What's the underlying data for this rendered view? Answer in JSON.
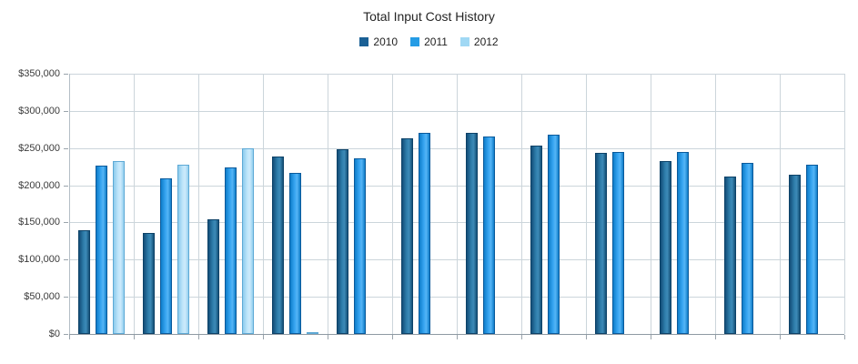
{
  "chart_data": {
    "type": "bar",
    "title": "Total Input Cost History",
    "categories": [
      "",
      "",
      "",
      "",
      "",
      "",
      "",
      "",
      "",
      "",
      "",
      ""
    ],
    "series": [
      {
        "name": "2010",
        "values": [
          140000,
          136000,
          154000,
          239000,
          248000,
          263000,
          271000,
          253000,
          243000,
          233000,
          212000,
          214000
        ],
        "color": {
          "border": "#0d4268",
          "left": "#134e78",
          "mid": "#2f7eac",
          "bright": "#3d8ab7",
          "right": "#155178",
          "legend": "#1a6095"
        }
      },
      {
        "name": "2011",
        "values": [
          226000,
          209000,
          224000,
          217000,
          236000,
          270000,
          265000,
          268000,
          245000,
          245000,
          230000,
          228000
        ],
        "color": {
          "border": "#0a5a9b",
          "left": "#0e7dca",
          "mid": "#38a6f1",
          "bright": "#55b5f6",
          "right": "#0f7dc9",
          "legend": "#259ce5"
        }
      },
      {
        "name": "2012",
        "values": [
          232000,
          228000,
          250000,
          2000,
          0,
          0,
          0,
          0,
          0,
          0,
          0,
          0
        ],
        "color": {
          "border": "#5ea9d5",
          "left": "#8ccbed",
          "mid": "#c0e6fa",
          "bright": "#cdeafc",
          "right": "#93d0ef",
          "legend": "#a0d8f4"
        }
      }
    ],
    "ylim": [
      0,
      350000
    ],
    "y_tick_labels": [
      "$350,000",
      "$300,000",
      "$250,000",
      "$200,000",
      "$150,000",
      "$100,000",
      "$50,000",
      "$0"
    ],
    "xlabel": "",
    "ylabel": "",
    "grid": true,
    "legend_position": "top-center"
  },
  "colors": {
    "background": "#ffffff",
    "grid": "#ccd5db",
    "axis": "#8f9aa3",
    "title_text": "#252525",
    "tick_text": "#3b3b3b",
    "legend_text": "#222222"
  }
}
